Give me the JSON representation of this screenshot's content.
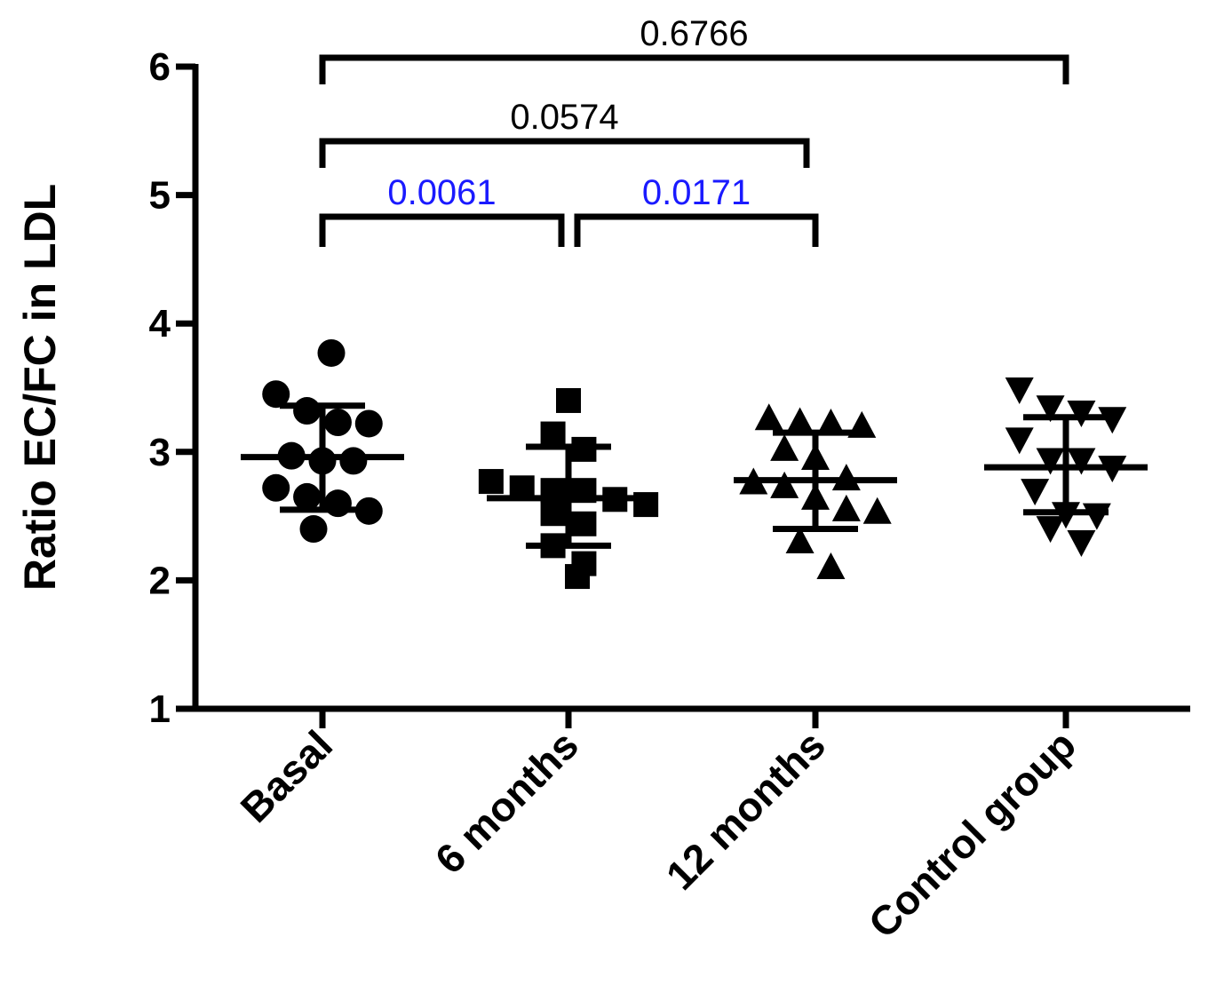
{
  "chart_data": {
    "type": "scatter",
    "ylabel": "Ratio EC/FC in LDL",
    "xlabel": "",
    "ylim": [
      1,
      6
    ],
    "yticks": [
      "1",
      "2",
      "3",
      "4",
      "5",
      "6"
    ],
    "grid": false,
    "categories": [
      "Basal",
      "6 months",
      "12 months",
      "Control group"
    ],
    "series": [
      {
        "category": "Basal",
        "marker": "circle",
        "values": [
          3.77,
          3.45,
          3.32,
          3.23,
          3.22,
          2.97,
          2.93,
          2.93,
          2.72,
          2.65,
          2.6,
          2.54,
          2.4
        ],
        "mean": 2.96,
        "sd_low": 2.55,
        "sd_high": 3.36
      },
      {
        "category": "6 months",
        "marker": "square",
        "values": [
          3.4,
          3.14,
          3.02,
          2.77,
          2.72,
          2.7,
          2.7,
          2.63,
          2.59,
          2.52,
          2.44,
          2.27,
          2.13,
          2.03
        ],
        "mean": 2.64,
        "sd_low": 2.27,
        "sd_high": 3.04
      },
      {
        "category": "12 months",
        "marker": "triangle-up",
        "values": [
          3.26,
          3.23,
          3.22,
          3.2,
          3.02,
          2.95,
          2.79,
          2.76,
          2.73,
          2.64,
          2.55,
          2.53,
          2.3,
          2.1
        ],
        "mean": 2.78,
        "sd_low": 2.4,
        "sd_high": 3.15
      },
      {
        "category": "Control group",
        "marker": "triangle-down",
        "values": [
          3.49,
          3.35,
          3.31,
          3.26,
          3.1,
          2.94,
          2.94,
          2.88,
          2.7,
          2.52,
          2.51,
          2.41,
          2.3
        ],
        "mean": 2.88,
        "sd_low": 2.53,
        "sd_high": 3.27
      }
    ],
    "annotations": [
      {
        "from": "Basal",
        "to": "Control group",
        "text": "0.6766",
        "color": "#000000"
      },
      {
        "from": "Basal",
        "to": "12 months",
        "text": "0.0574",
        "color": "#000000"
      },
      {
        "from": "Basal",
        "to": "6 months",
        "text": "0.0061",
        "color": "#1a1aff"
      },
      {
        "from": "6 months",
        "to": "12 months",
        "text": "0.0171",
        "color": "#1a1aff"
      }
    ]
  }
}
